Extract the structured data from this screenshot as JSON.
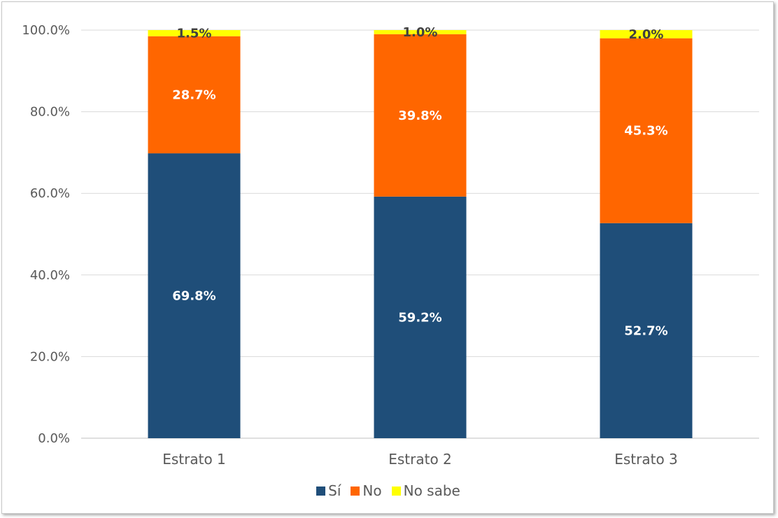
{
  "chart_data": {
    "type": "bar",
    "stacked": true,
    "categories": [
      "Estrato 1",
      "Estrato 2",
      "Estrato 3"
    ],
    "series": [
      {
        "name": "Sí",
        "values": [
          69.8,
          59.2,
          52.7
        ],
        "color": "#1f4e79",
        "label_color": "#ffffff"
      },
      {
        "name": "No",
        "values": [
          28.7,
          39.8,
          45.3
        ],
        "color": "#ff6600",
        "label_color": "#ffffff"
      },
      {
        "name": "No sabe",
        "values": [
          1.5,
          1.0,
          2.0
        ],
        "color": "#ffff00",
        "label_color": "#404040"
      }
    ],
    "data_labels": [
      [
        "69.8%",
        "59.2%",
        "52.7%"
      ],
      [
        "28.7%",
        "39.8%",
        "45.3%"
      ],
      [
        "1.5%",
        "1.0%",
        "2.0%"
      ]
    ],
    "yticks": [
      "0.0%",
      "20.0%",
      "40.0%",
      "60.0%",
      "80.0%",
      "100.0%"
    ],
    "ylim": [
      0,
      100
    ],
    "grid": true,
    "legend_position": "bottom"
  }
}
